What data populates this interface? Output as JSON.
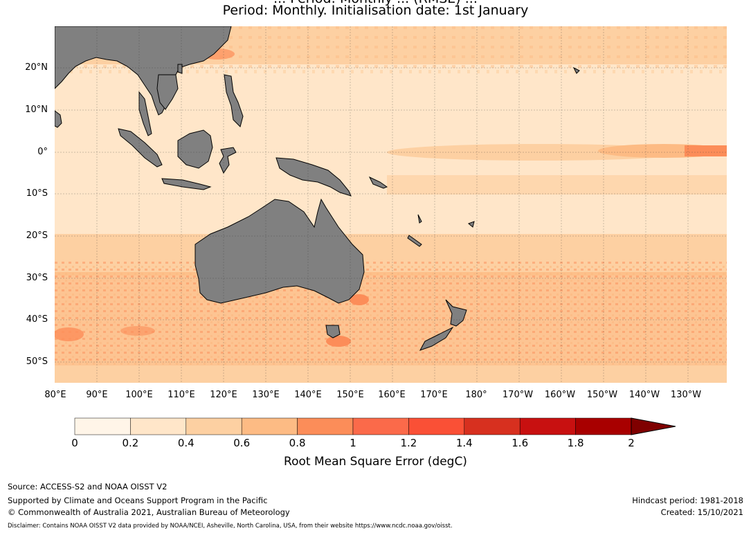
{
  "title": {
    "line1": "... Period: Monthly ... (RMSE) ...",
    "line2": "Period: Monthly. Initialisation date: 1st January"
  },
  "map": {
    "type": "heatmap",
    "variable": "Root Mean Square Error",
    "units": "degC",
    "land_color": "#808080",
    "grid": true,
    "lat_labels": [
      "20°N",
      "10°N",
      "0°",
      "10°S",
      "20°S",
      "30°S",
      "40°S",
      "50°S"
    ],
    "lon_labels": [
      "80°E",
      "90°E",
      "100°E",
      "110°E",
      "120°E",
      "130°E",
      "140°E",
      "150°E",
      "160°E",
      "170°E",
      "180°",
      "170°W",
      "160°W",
      "150°W",
      "140°W",
      "130°W"
    ],
    "extent": {
      "lon_min": 80,
      "lon_max": 239,
      "lat_min": -55,
      "lat_max": 30
    }
  },
  "chart_data": {
    "type": "heatmap",
    "title": "Period: Monthly. Initialisation date: 1st January",
    "colorbar_label": "Root Mean Square Error (degC)",
    "levels": [
      0,
      0.2,
      0.4,
      0.6,
      0.8,
      1,
      1.2,
      1.4,
      1.6,
      1.8,
      2
    ],
    "colors": [
      "#fff5e8",
      "#ffe6c9",
      "#fdd0a2",
      "#fdbb84",
      "#fc8d59",
      "#fb6a4a",
      "#fa5036",
      "#d7301f",
      "#c81010",
      "#a80000",
      "#7f0000"
    ],
    "extend": "max",
    "xlim": [
      80,
      239
    ],
    "ylim": [
      -55,
      30
    ]
  },
  "colorbar": {
    "ticks": [
      "0",
      "0.2",
      "0.4",
      "0.6",
      "0.8",
      "1",
      "1.2",
      "1.4",
      "1.6",
      "1.8",
      "2"
    ],
    "label": "Root Mean Square Error (degC)"
  },
  "footer": {
    "source": "Source: ACCESS-S2 and NOAA OISST V2",
    "support": "Supported by Climate and Oceans Support Program in the Pacific",
    "copyright": "© Commonwealth of Australia 2021, Australian Bureau of Meteorology",
    "hindcast": "Hindcast period: 1981-2018",
    "created": "Created: 15/10/2021",
    "disclaimer": "Disclaimer: Contains NOAA OISST V2 data provided by NOAA/NCEI, Asheville, North Carolina, USA, from their website https://www.ncdc.noaa.gov/oisst."
  }
}
